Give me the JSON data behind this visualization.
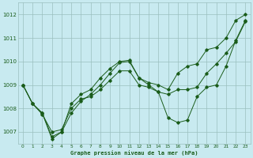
{
  "title": "Graphe pression niveau de la mer (hPa)",
  "bg_color": "#c8eaf0",
  "line_color": "#1a5c1a",
  "grid_color": "#9bbfbf",
  "ylim": [
    1006.5,
    1012.5
  ],
  "xlim": [
    -0.5,
    23.5
  ],
  "yticks": [
    1007,
    1008,
    1009,
    1010,
    1011,
    1012
  ],
  "xticks": [
    0,
    1,
    2,
    3,
    4,
    5,
    6,
    7,
    8,
    9,
    10,
    11,
    12,
    13,
    14,
    15,
    16,
    17,
    18,
    19,
    20,
    21,
    22,
    23
  ],
  "series": [
    [
      1009.0,
      1008.2,
      1007.8,
      1006.7,
      1007.0,
      1008.2,
      1008.6,
      1008.8,
      1009.3,
      1009.7,
      1010.0,
      1010.05,
      1009.3,
      1009.1,
      1009.0,
      1008.8,
      1009.5,
      1009.8,
      1009.9,
      1010.5,
      1010.6,
      1011.0,
      1011.75,
      1012.0
    ],
    [
      1009.0,
      1008.2,
      1007.8,
      1006.8,
      1007.0,
      1007.8,
      1008.3,
      1008.6,
      1009.0,
      1009.5,
      1009.95,
      1010.0,
      1009.3,
      1009.0,
      1008.7,
      1007.6,
      1007.4,
      1007.5,
      1008.5,
      1008.9,
      1009.0,
      1009.8,
      1010.9,
      1011.75
    ],
    [
      1009.0,
      1008.2,
      1007.75,
      1007.0,
      1007.1,
      1008.0,
      1008.4,
      1008.5,
      1008.8,
      1009.2,
      1009.6,
      1009.6,
      1009.0,
      1008.9,
      1008.7,
      1008.6,
      1008.8,
      1008.8,
      1008.9,
      1009.5,
      1009.9,
      1010.35,
      1010.85,
      1011.7
    ]
  ]
}
